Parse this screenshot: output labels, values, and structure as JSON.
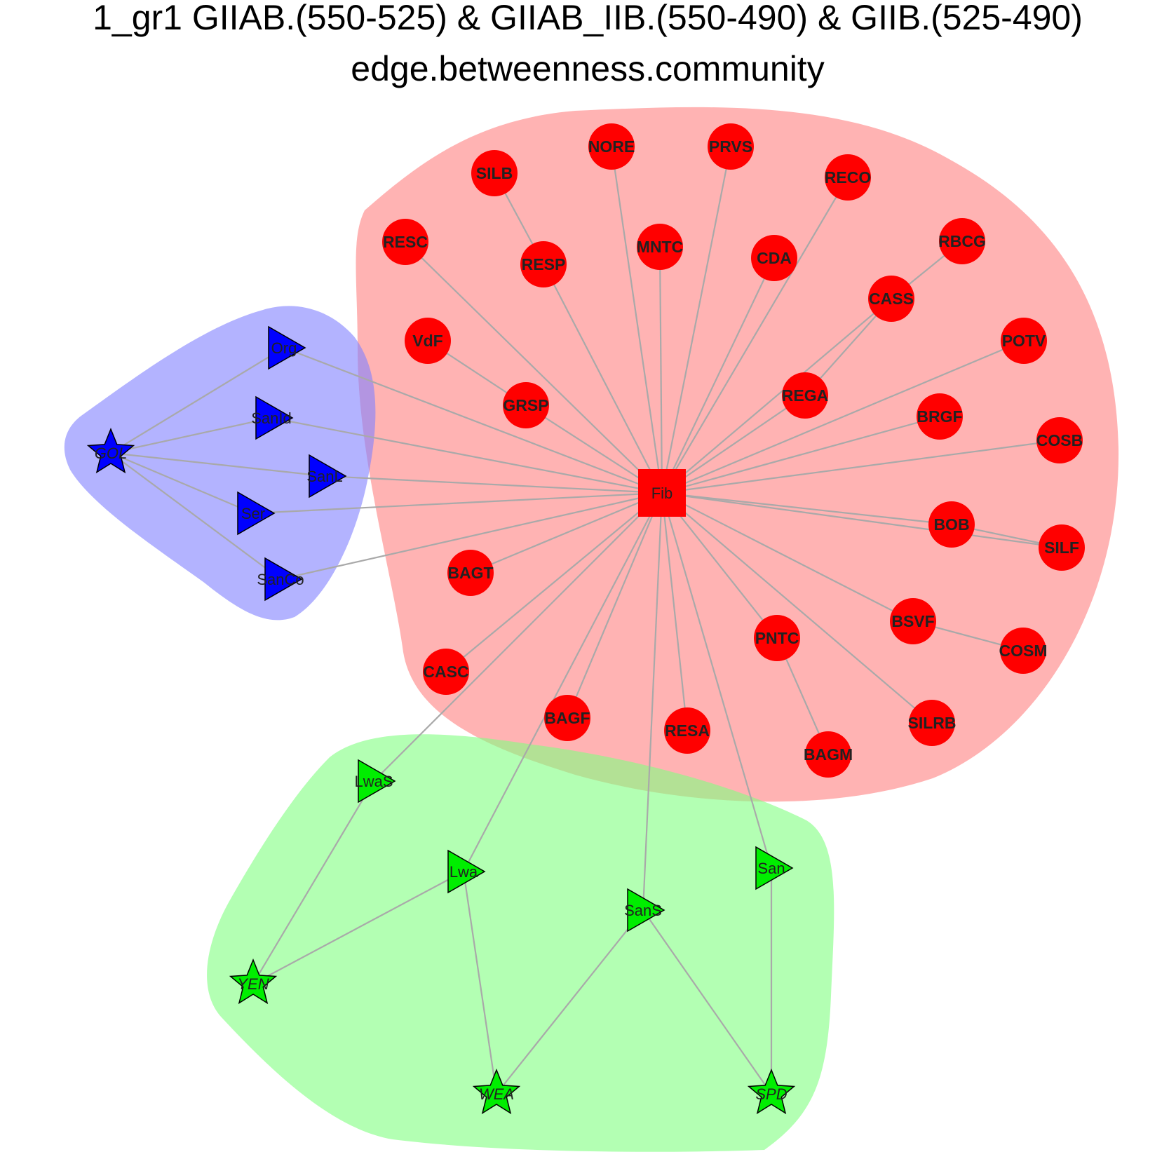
{
  "title": {
    "line1": "1_gr1 GIIAB.(550-525) & GIIAB_IIB.(550-490) & GIIB.(525-490)",
    "line2": "edge.betweenness.community"
  },
  "colors": {
    "red_group_fill": "#ff8080",
    "blue_group_fill": "#8080ff",
    "green_group_fill": "#80ff80",
    "red_node": "#ff0000",
    "blue_node": "#0000ff",
    "green_node": "#00ee00",
    "edge": "#a9a9a9"
  },
  "nodes": [
    {
      "id": "Fib",
      "label": "Fib",
      "group": "red",
      "shape": "square"
    },
    {
      "id": "NORE",
      "label": "NORE",
      "group": "red",
      "shape": "circle"
    },
    {
      "id": "PRVS",
      "label": "PRVS",
      "group": "red",
      "shape": "circle"
    },
    {
      "id": "SILB",
      "label": "SILB",
      "group": "red",
      "shape": "circle"
    },
    {
      "id": "RECO",
      "label": "RECO",
      "group": "red",
      "shape": "circle"
    },
    {
      "id": "RESC",
      "label": "RESC",
      "group": "red",
      "shape": "circle"
    },
    {
      "id": "MNTC",
      "label": "MNTC",
      "group": "red",
      "shape": "circle"
    },
    {
      "id": "CDA",
      "label": "CDA",
      "group": "red",
      "shape": "circle"
    },
    {
      "id": "RBCG",
      "label": "RBCG",
      "group": "red",
      "shape": "circle"
    },
    {
      "id": "RESP",
      "label": "RESP",
      "group": "red",
      "shape": "circle"
    },
    {
      "id": "CASS",
      "label": "CASS",
      "group": "red",
      "shape": "circle"
    },
    {
      "id": "VdF",
      "label": "VdF",
      "group": "red",
      "shape": "circle"
    },
    {
      "id": "POTV",
      "label": "POTV",
      "group": "red",
      "shape": "circle"
    },
    {
      "id": "REGA",
      "label": "REGA",
      "group": "red",
      "shape": "circle"
    },
    {
      "id": "GRSP",
      "label": "GRSP",
      "group": "red",
      "shape": "circle"
    },
    {
      "id": "BRGF",
      "label": "BRGF",
      "group": "red",
      "shape": "circle"
    },
    {
      "id": "COSB",
      "label": "COSB",
      "group": "red",
      "shape": "circle"
    },
    {
      "id": "BOB",
      "label": "BOB",
      "group": "red",
      "shape": "circle"
    },
    {
      "id": "SILF",
      "label": "SILF",
      "group": "red",
      "shape": "circle"
    },
    {
      "id": "BAGT",
      "label": "BAGT",
      "group": "red",
      "shape": "circle"
    },
    {
      "id": "BSVF",
      "label": "BSVF",
      "group": "red",
      "shape": "circle"
    },
    {
      "id": "PNTC",
      "label": "PNTC",
      "group": "red",
      "shape": "circle"
    },
    {
      "id": "COSM",
      "label": "COSM",
      "group": "red",
      "shape": "circle"
    },
    {
      "id": "CASC",
      "label": "CASC",
      "group": "red",
      "shape": "circle"
    },
    {
      "id": "BAGF",
      "label": "BAGF",
      "group": "red",
      "shape": "circle"
    },
    {
      "id": "RESA",
      "label": "RESA",
      "group": "red",
      "shape": "circle"
    },
    {
      "id": "SILRB",
      "label": "SILRB",
      "group": "red",
      "shape": "circle"
    },
    {
      "id": "BAGM",
      "label": "BAGM",
      "group": "red",
      "shape": "circle"
    },
    {
      "id": "GOL",
      "label": "GOL",
      "group": "blue",
      "shape": "star"
    },
    {
      "id": "Org",
      "label": "Org",
      "group": "blue",
      "shape": "triangle"
    },
    {
      "id": "SanId",
      "label": "SanId",
      "group": "blue",
      "shape": "triangle"
    },
    {
      "id": "SanL",
      "label": "SanL",
      "group": "blue",
      "shape": "triangle"
    },
    {
      "id": "Ser",
      "label": "Ser",
      "group": "blue",
      "shape": "triangle"
    },
    {
      "id": "SanCo",
      "label": "SanCo",
      "group": "blue",
      "shape": "triangle"
    },
    {
      "id": "LwaS",
      "label": "LwaS",
      "group": "green",
      "shape": "triangle"
    },
    {
      "id": "Lwa",
      "label": "Lwa",
      "group": "green",
      "shape": "triangle"
    },
    {
      "id": "San",
      "label": "San",
      "group": "green",
      "shape": "triangle"
    },
    {
      "id": "SanS",
      "label": "SanS",
      "group": "green",
      "shape": "triangle"
    },
    {
      "id": "YEN",
      "label": "YEN",
      "group": "green",
      "shape": "star"
    },
    {
      "id": "WEA",
      "label": "WEA",
      "group": "green",
      "shape": "star"
    },
    {
      "id": "SPD",
      "label": "SPD",
      "group": "green",
      "shape": "star"
    }
  ],
  "edges": [
    [
      "Fib",
      "NORE"
    ],
    [
      "Fib",
      "PRVS"
    ],
    [
      "Fib",
      "RECO"
    ],
    [
      "Fib",
      "RESC"
    ],
    [
      "Fib",
      "MNTC"
    ],
    [
      "Fib",
      "CDA"
    ],
    [
      "Fib",
      "RESP"
    ],
    [
      "Fib",
      "CASS"
    ],
    [
      "Fib",
      "POTV"
    ],
    [
      "Fib",
      "REGA"
    ],
    [
      "Fib",
      "GRSP"
    ],
    [
      "Fib",
      "BRGF"
    ],
    [
      "Fib",
      "COSB"
    ],
    [
      "Fib",
      "BOB"
    ],
    [
      "Fib",
      "BAGT"
    ],
    [
      "Fib",
      "BSVF"
    ],
    [
      "Fib",
      "PNTC"
    ],
    [
      "Fib",
      "CASC"
    ],
    [
      "Fib",
      "BAGF"
    ],
    [
      "Fib",
      "RESA"
    ],
    [
      "Fib",
      "SILRB"
    ],
    [
      "Fib",
      "SILF"
    ],
    [
      "SILB",
      "RESP"
    ],
    [
      "RBCG",
      "CASS"
    ],
    [
      "VdF",
      "GRSP"
    ],
    [
      "BOB",
      "SILF"
    ],
    [
      "BSVF",
      "COSM"
    ],
    [
      "PNTC",
      "BAGM"
    ],
    [
      "CASS",
      "REGA"
    ],
    [
      "Fib",
      "Org"
    ],
    [
      "Fib",
      "SanId"
    ],
    [
      "Fib",
      "SanL"
    ],
    [
      "Fib",
      "Ser"
    ],
    [
      "Fib",
      "SanCo"
    ],
    [
      "GOL",
      "Org"
    ],
    [
      "GOL",
      "SanId"
    ],
    [
      "GOL",
      "SanL"
    ],
    [
      "GOL",
      "Ser"
    ],
    [
      "GOL",
      "SanCo"
    ],
    [
      "Fib",
      "LwaS"
    ],
    [
      "Fib",
      "Lwa"
    ],
    [
      "Fib",
      "SanS"
    ],
    [
      "Fib",
      "San"
    ],
    [
      "LwaS",
      "YEN"
    ],
    [
      "Lwa",
      "YEN"
    ],
    [
      "Lwa",
      "WEA"
    ],
    [
      "SanS",
      "WEA"
    ],
    [
      "SanS",
      "SPD"
    ],
    [
      "San",
      "SPD"
    ]
  ]
}
